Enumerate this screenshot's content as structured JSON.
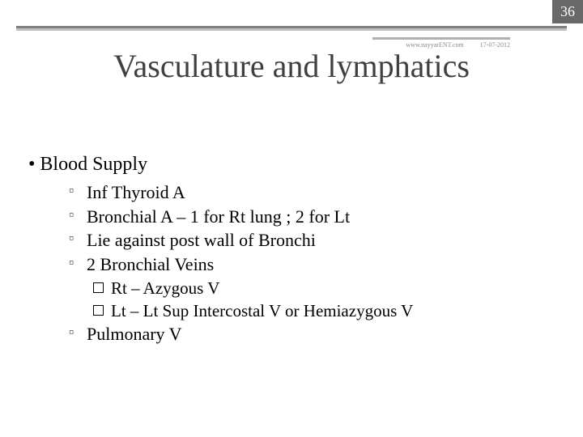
{
  "page_number": "36",
  "meta_url": "www.nayyarENT.com",
  "meta_date": "17-07-2012",
  "title": "Vasculature and lymphatics",
  "main_bullet": "• Blood Supply",
  "sub_items": {
    "a": "Inf Thyroid A",
    "b": "Bronchial A – 1 for Rt lung ; 2 for Lt",
    "c": "Lie against post wall of Bronchi",
    "d": "2 Bronchial Veins",
    "e": "Pulmonary V"
  },
  "sub_sub_items": {
    "a": "Rt – Azygous V",
    "b": "Lt – Lt Sup Intercostal V or Hemiazygous V"
  },
  "colors": {
    "page_bg": "#ffffff",
    "badge_bg": "#696969",
    "badge_text": "#ffffff",
    "title_color": "#404040",
    "rule_dark": "#808080",
    "rule_light": "#c0c0c0"
  }
}
